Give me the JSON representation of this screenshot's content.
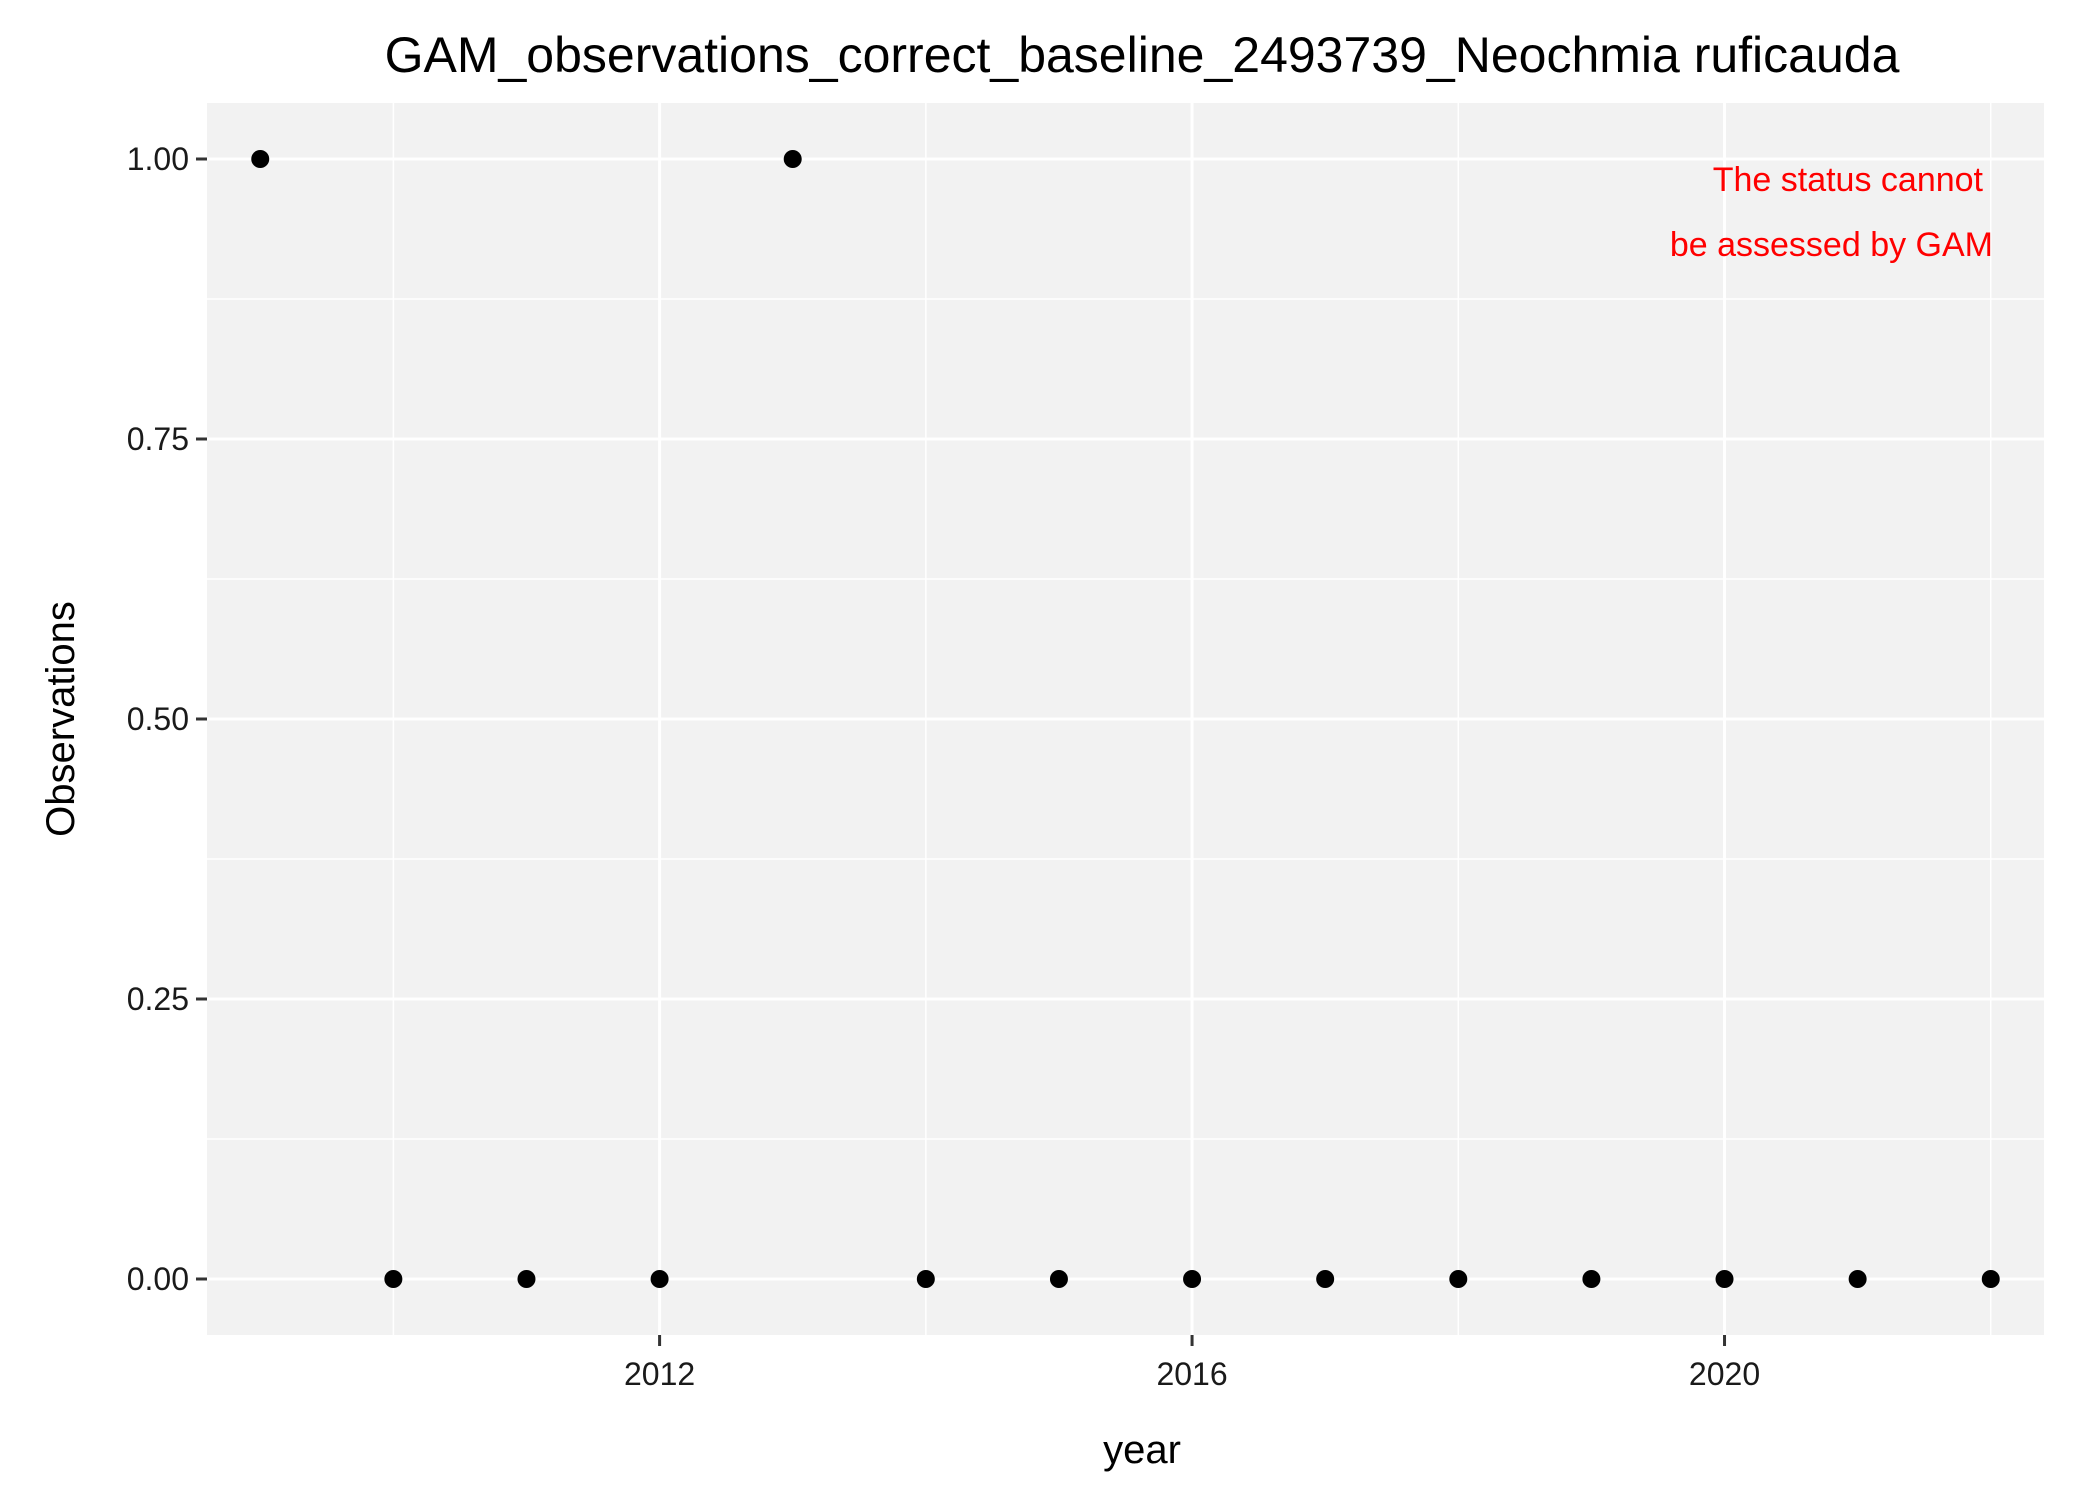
{
  "chart_data": {
    "type": "scatter",
    "title": "GAM_observations_correct_baseline_2493739_Neochmia ruficauda",
    "xlabel": "year",
    "ylabel": "Observations",
    "xlim": [
      2008.6,
      2022.4
    ],
    "ylim": [
      -0.05,
      1.05
    ],
    "x_ticks": [
      2012,
      2016,
      2020
    ],
    "y_ticks": [
      0,
      0.25,
      0.5,
      0.75,
      1
    ],
    "y_tick_labels": [
      "0.00",
      "0.25",
      "0.50",
      "0.75",
      "1.00"
    ],
    "grid": true,
    "points": [
      {
        "x": 2009,
        "y": 1
      },
      {
        "x": 2010,
        "y": 0
      },
      {
        "x": 2011,
        "y": 0
      },
      {
        "x": 2012,
        "y": 0
      },
      {
        "x": 2013,
        "y": 1
      },
      {
        "x": 2014,
        "y": 0
      },
      {
        "x": 2015,
        "y": 0
      },
      {
        "x": 2016,
        "y": 0
      },
      {
        "x": 2017,
        "y": 0
      },
      {
        "x": 2018,
        "y": 0
      },
      {
        "x": 2019,
        "y": 0
      },
      {
        "x": 2020,
        "y": 0
      },
      {
        "x": 2021,
        "y": 0
      },
      {
        "x": 2022,
        "y": 0
      }
    ],
    "annotation": {
      "lines": [
        "The status cannot",
        "be assessed by GAM"
      ],
      "color": "#ff0000",
      "placement": "top-right"
    },
    "colors": {
      "panel": "#f2f2f2",
      "grid": "#ffffff",
      "point": "#000000",
      "tick": "#333333"
    }
  }
}
